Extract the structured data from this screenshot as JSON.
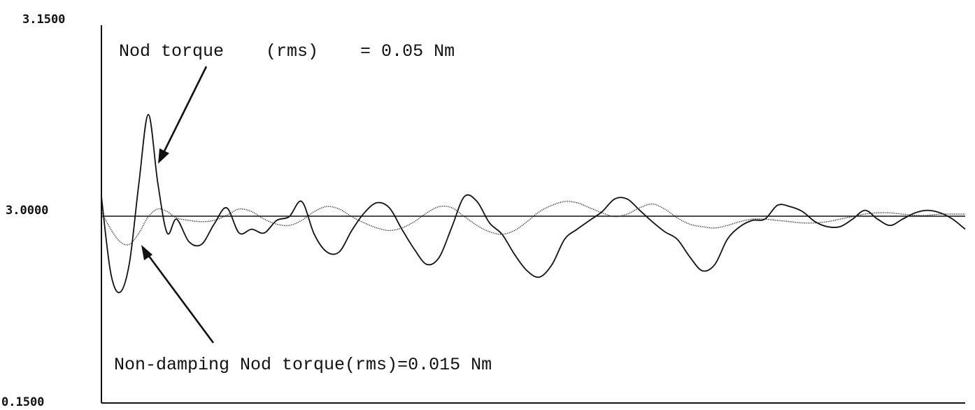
{
  "chart_data": {
    "type": "line",
    "title": "",
    "xlabel": "",
    "ylabel": "",
    "ylim": [
      -0.15,
      0.15
    ],
    "y_tick_labels": [
      "3.1500",
      "3.0000",
      "0.1500"
    ],
    "grid": false,
    "zero_line": true,
    "x": [
      0,
      15,
      30,
      45,
      60,
      75,
      90,
      105,
      120,
      140,
      160,
      180,
      200,
      220,
      240,
      260,
      280,
      300,
      320,
      340,
      360,
      380,
      400,
      420,
      440,
      460,
      480,
      500,
      520,
      540,
      560,
      580,
      600,
      620,
      640,
      660,
      680,
      700,
      720,
      740,
      760,
      780,
      800,
      820,
      840,
      860,
      880,
      900,
      920,
      940,
      960,
      980,
      1000,
      1020,
      1040,
      1060,
      1080,
      1100,
      1120,
      1140,
      1160,
      1180,
      1200,
      1220,
      1240,
      1260,
      1280,
      1300,
      1320,
      1340,
      1360,
      1380
    ],
    "series": [
      {
        "style": "solid",
        "values": [
          0.014,
          -0.047,
          -0.062,
          -0.038,
          0.025,
          0.079,
          0.025,
          -0.015,
          -0.004,
          -0.022,
          -0.024,
          -0.008,
          0.005,
          -0.015,
          -0.012,
          -0.015,
          -0.005,
          -0.002,
          0.01,
          -0.016,
          -0.03,
          -0.03,
          -0.013,
          0.001,
          0.009,
          0.005,
          -0.012,
          -0.028,
          -0.04,
          -0.034,
          -0.01,
          0.014,
          0.01,
          -0.007,
          -0.016,
          -0.032,
          -0.045,
          -0.05,
          -0.04,
          -0.02,
          -0.012,
          -0.005,
          0.002,
          0.012,
          0.012,
          0.003,
          -0.006,
          -0.014,
          -0.02,
          -0.034,
          -0.045,
          -0.04,
          -0.02,
          -0.01,
          -0.005,
          -0.004,
          0.007,
          0.006,
          0.002,
          -0.006,
          -0.01,
          -0.01,
          -0.004,
          0.003,
          -0.004,
          -0.009,
          -0.004,
          0.001,
          0.003,
          0.001,
          -0.004,
          -0.012
        ]
      },
      {
        "style": "dotted",
        "values": [
          0.002,
          -0.012,
          -0.022,
          -0.024,
          -0.015,
          -0.002,
          0.004,
          0.002,
          -0.003,
          -0.005,
          -0.006,
          -0.005,
          -0.001,
          0.004,
          0.002,
          -0.004,
          -0.008,
          -0.009,
          -0.005,
          0.002,
          0.006,
          0.004,
          -0.002,
          -0.007,
          -0.011,
          -0.013,
          -0.011,
          -0.006,
          0.001,
          0.006,
          0.005,
          -0.002,
          -0.009,
          -0.014,
          -0.016,
          -0.013,
          -0.006,
          0.002,
          0.007,
          0.01,
          0.009,
          0.005,
          0.001,
          -0.002,
          0.0,
          0.005,
          0.008,
          0.004,
          -0.003,
          -0.008,
          -0.01,
          -0.011,
          -0.009,
          -0.006,
          -0.004,
          -0.004,
          -0.005,
          -0.006,
          -0.007,
          -0.007,
          -0.006,
          -0.004,
          -0.002,
          0.0,
          0.001,
          0.001,
          0.0,
          -0.001,
          -0.001,
          0.0,
          0.0,
          0.0
        ]
      }
    ],
    "annotations": [
      {
        "label": "Nod torque    (rms)    = 0.05 Nm"
      },
      {
        "label": "Non-damping Nod torque(rms)=0.015 Nm"
      }
    ]
  }
}
